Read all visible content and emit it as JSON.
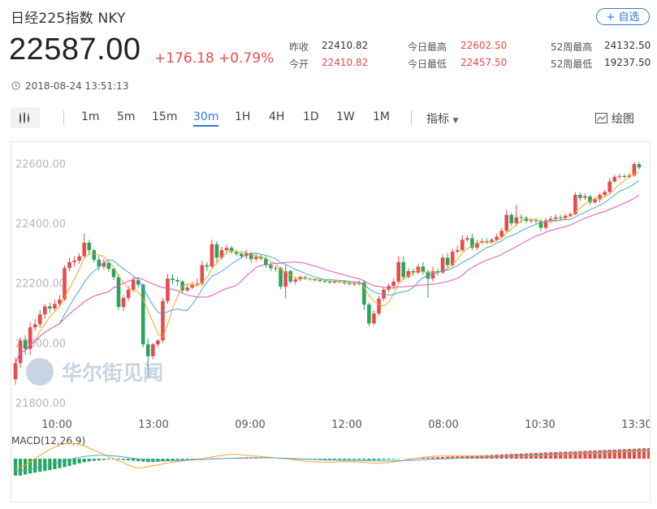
{
  "header": {
    "title": "日经225指数  NKY",
    "fav_label": "+ 自选",
    "price": "22587.00",
    "change": "+176.18",
    "change_pct": "+0.79%",
    "timestamp": "2018-08-24 13:51:13"
  },
  "stats": [
    {
      "label": "昨收",
      "value": "22410.82",
      "color": "normal"
    },
    {
      "label": "今开",
      "value": "22410.82",
      "color": "red"
    },
    {
      "label": "今日最高",
      "value": "22602.50",
      "color": "red"
    },
    {
      "label": "今日最低",
      "value": "22457.50",
      "color": "red"
    },
    {
      "label": "52周最高",
      "value": "24132.50",
      "color": "normal"
    },
    {
      "label": "52周最低",
      "value": "19237.50",
      "color": "normal"
    }
  ],
  "toolbar": {
    "periods": [
      "1m",
      "5m",
      "15m",
      "30m",
      "1H",
      "4H",
      "1D",
      "1W",
      "1M"
    ],
    "active_period": "30m",
    "indicator_label": "指标",
    "draw_label": "绘图"
  },
  "watermark": "华尔街见闻",
  "colors": {
    "up": "#e94b4b",
    "down": "#26a65b",
    "ma_orange": "#f5a623",
    "ma_blue": "#4aa3df",
    "ma_pink": "#e84fb5",
    "accent": "#2f7ad6"
  },
  "chart_data": {
    "type": "candlestick",
    "x_tick_labels": [
      "10:00",
      "13:00",
      "09:00",
      "12:00",
      "08:00",
      "10:30",
      "13:30"
    ],
    "y_tick_labels": [
      "22600.00",
      "22400.00",
      "22200.00",
      "22000.00",
      "21800.00"
    ],
    "ylim": [
      21770,
      22650
    ],
    "grid": false,
    "candles": [
      [
        21878,
        21932,
        21860,
        21950
      ],
      [
        21932,
        22008,
        21915,
        22018
      ],
      [
        22008,
        21980,
        21960,
        22025
      ],
      [
        21980,
        22052,
        21960,
        22070
      ],
      [
        22052,
        22062,
        22040,
        22080
      ],
      [
        22062,
        22095,
        22050,
        22110
      ],
      [
        22095,
        22122,
        22080,
        22130
      ],
      [
        22122,
        22115,
        22100,
        22135
      ],
      [
        22115,
        22130,
        22105,
        22145
      ],
      [
        22130,
        22145,
        22120,
        22160
      ],
      [
        22145,
        22250,
        22140,
        22260
      ],
      [
        22250,
        22270,
        22240,
        22285
      ],
      [
        22270,
        22275,
        22255,
        22290
      ],
      [
        22275,
        22290,
        22265,
        22300
      ],
      [
        22290,
        22335,
        22285,
        22365
      ],
      [
        22335,
        22310,
        22295,
        22345
      ],
      [
        22310,
        22278,
        22270,
        22315
      ],
      [
        22278,
        22255,
        22240,
        22290
      ],
      [
        22255,
        22268,
        22245,
        22282
      ],
      [
        22268,
        22248,
        22238,
        22275
      ],
      [
        22248,
        22220,
        22210,
        22250
      ],
      [
        22220,
        22120,
        22110,
        22230
      ],
      [
        22120,
        22150,
        22108,
        22160
      ],
      [
        22150,
        22178,
        22140,
        22190
      ],
      [
        22178,
        22210,
        22170,
        22220
      ],
      [
        22210,
        22195,
        22185,
        22218
      ],
      [
        22195,
        21995,
        21985,
        22198
      ],
      [
        21995,
        21955,
        21885,
        22015
      ],
      [
        21955,
        21995,
        21945,
        22000
      ],
      [
        21995,
        22008,
        21985,
        22012
      ],
      [
        22008,
        22140,
        22000,
        22150
      ],
      [
        22140,
        22215,
        22130,
        22230
      ],
      [
        22215,
        22210,
        22195,
        22230
      ],
      [
        22210,
        22205,
        22190,
        22218
      ],
      [
        22205,
        22175,
        22165,
        22210
      ],
      [
        22175,
        22185,
        22170,
        22195
      ],
      [
        22185,
        22195,
        22180,
        22205
      ],
      [
        22195,
        22198,
        22188,
        22215
      ],
      [
        22198,
        22260,
        22190,
        22275
      ],
      [
        22260,
        22255,
        22240,
        22270
      ],
      [
        22255,
        22330,
        22250,
        22345
      ],
      [
        22330,
        22285,
        22270,
        22340
      ],
      [
        22285,
        22310,
        22278,
        22322
      ],
      [
        22310,
        22318,
        22300,
        22328
      ],
      [
        22318,
        22305,
        22298,
        22325
      ],
      [
        22305,
        22298,
        22290,
        22312
      ],
      [
        22298,
        22290,
        22282,
        22305
      ],
      [
        22290,
        22300,
        22280,
        22312
      ],
      [
        22300,
        22280,
        22268,
        22305
      ],
      [
        22280,
        22288,
        22272,
        22298
      ],
      [
        22288,
        22282,
        22275,
        22295
      ],
      [
        22282,
        22260,
        22250,
        22290
      ],
      [
        22260,
        22250,
        22240,
        22270
      ],
      [
        22250,
        22250,
        22238,
        22258
      ],
      [
        22250,
        22188,
        22180,
        22255
      ],
      [
        22188,
        22240,
        22150,
        22260
      ],
      [
        22240,
        22205,
        22198,
        22245
      ],
      [
        22205,
        22212,
        22195,
        22220
      ],
      [
        22212,
        22220,
        22206,
        22225
      ],
      [
        22220,
        22215,
        22210,
        22225
      ],
      [
        22215,
        22212,
        22208,
        22218
      ],
      [
        22212,
        22210,
        22205,
        22216
      ],
      [
        22210,
        22207,
        22202,
        22214
      ],
      [
        22207,
        22205,
        22200,
        22212
      ],
      [
        22205,
        22202,
        22198,
        22210
      ],
      [
        22202,
        22205,
        22198,
        22212
      ],
      [
        22205,
        22205,
        22200,
        22210
      ],
      [
        22205,
        22200,
        22195,
        22210
      ],
      [
        22200,
        22198,
        22192,
        22205
      ],
      [
        22198,
        22198,
        22190,
        22205
      ],
      [
        22198,
        22202,
        22192,
        22208
      ],
      [
        22202,
        22128,
        22110,
        22210
      ],
      [
        22128,
        22065,
        22055,
        22135
      ],
      [
        22065,
        22098,
        22060,
        22108
      ],
      [
        22098,
        22148,
        22090,
        22158
      ],
      [
        22148,
        22178,
        22140,
        22188
      ],
      [
        22178,
        22190,
        22170,
        22198
      ],
      [
        22190,
        22205,
        22180,
        22215
      ],
      [
        22205,
        22270,
        22200,
        22290
      ],
      [
        22270,
        22220,
        22210,
        22290
      ],
      [
        22220,
        22240,
        22215,
        22250
      ],
      [
        22240,
        22235,
        22225,
        22248
      ],
      [
        22235,
        22255,
        22230,
        22265
      ],
      [
        22255,
        22238,
        22228,
        22270
      ],
      [
        22238,
        22215,
        22150,
        22245
      ],
      [
        22215,
        22240,
        22205,
        22255
      ],
      [
        22240,
        22235,
        22225,
        22248
      ],
      [
        22235,
        22285,
        22230,
        22295
      ],
      [
        22285,
        22260,
        22250,
        22300
      ],
      [
        22260,
        22305,
        22255,
        22315
      ],
      [
        22305,
        22310,
        22300,
        22325
      ],
      [
        22310,
        22345,
        22305,
        22360
      ],
      [
        22345,
        22350,
        22338,
        22360
      ],
      [
        22350,
        22318,
        22310,
        22365
      ],
      [
        22318,
        22335,
        22310,
        22345
      ],
      [
        22335,
        22340,
        22330,
        22350
      ],
      [
        22340,
        22338,
        22330,
        22350
      ],
      [
        22338,
        22345,
        22332,
        22352
      ],
      [
        22345,
        22355,
        22340,
        22365
      ],
      [
        22355,
        22375,
        22350,
        22385
      ],
      [
        22375,
        22428,
        22370,
        22445
      ],
      [
        22428,
        22400,
        22390,
        22435
      ],
      [
        22400,
        22420,
        22390,
        22462
      ],
      [
        22420,
        22418,
        22400,
        22430
      ],
      [
        22418,
        22408,
        22400,
        22425
      ],
      [
        22408,
        22410,
        22400,
        22418
      ],
      [
        22410,
        22408,
        22398,
        22418
      ],
      [
        22408,
        22385,
        22375,
        22415
      ],
      [
        22385,
        22410,
        22378,
        22418
      ],
      [
        22410,
        22415,
        22400,
        22425
      ],
      [
        22415,
        22420,
        22410,
        22430
      ],
      [
        22420,
        22418,
        22412,
        22428
      ],
      [
        22418,
        22425,
        22412,
        22432
      ],
      [
        22425,
        22430,
        22420,
        22438
      ],
      [
        22430,
        22495,
        22428,
        22505
      ],
      [
        22495,
        22485,
        22475,
        22502
      ],
      [
        22485,
        22490,
        22478,
        22500
      ],
      [
        22490,
        22470,
        22462,
        22495
      ],
      [
        22470,
        22480,
        22465,
        22488
      ],
      [
        22480,
        22495,
        22470,
        22502
      ],
      [
        22495,
        22505,
        22488,
        22512
      ],
      [
        22505,
        22540,
        22500,
        22552
      ],
      [
        22540,
        22555,
        22535,
        22562
      ],
      [
        22555,
        22558,
        22548,
        22565
      ],
      [
        22558,
        22555,
        22550,
        22565
      ],
      [
        22555,
        22560,
        22550,
        22568
      ],
      [
        22560,
        22598,
        22555,
        22605
      ],
      [
        22598,
        22587,
        22580,
        22605
      ]
    ],
    "ma_lines": [
      {
        "color_key": "ma_orange",
        "period": 5
      },
      {
        "color_key": "ma_blue",
        "period": 10
      },
      {
        "color_key": "ma_pink",
        "period": 20
      }
    ],
    "macd": {
      "label": "MACD(12,26,9)",
      "hist": [
        -8,
        -8,
        -7.5,
        -7,
        -6.6,
        -6.2,
        -5.8,
        -5.4,
        -5,
        -4.5,
        -4,
        -3.4,
        -2.8,
        -2.2,
        -1.7,
        -1.3,
        -1,
        -0.8,
        -0.6,
        -0.4,
        -0.3,
        -0.4,
        -0.6,
        -0.8,
        -1,
        -1.2,
        -1.4,
        -1.6,
        -1.6,
        -1.5,
        -1.3,
        -1,
        -0.8,
        -0.6,
        -0.5,
        -0.4,
        -0.3,
        -0.2,
        -0.1,
        0,
        0.1,
        0.15,
        0.2,
        0.25,
        0.3,
        0.3,
        0.3,
        0.3,
        0.25,
        0.2,
        0.15,
        0.1,
        0.05,
        0,
        -0.1,
        -0.2,
        -0.3,
        -0.35,
        -0.4,
        -0.45,
        -0.5,
        -0.5,
        -0.5,
        -0.5,
        -0.5,
        -0.5,
        -0.5,
        -0.5,
        -0.5,
        -0.5,
        -0.5,
        -0.6,
        -0.7,
        -0.7,
        -0.6,
        -0.5,
        -0.4,
        -0.3,
        -0.2,
        0,
        0.1,
        0.2,
        0.3,
        0.4,
        0.5,
        0.6,
        0.7,
        0.8,
        0.9,
        1,
        1.1,
        1.2,
        1.3,
        1.4,
        1.5,
        1.6,
        1.7,
        1.8,
        1.9,
        2,
        2.1,
        2.2,
        2.3,
        2.4,
        2.5,
        2.6,
        2.7,
        2.8,
        2.9,
        3,
        3.1,
        3.2,
        3.3,
        3.4,
        3.5,
        3.6,
        3.7,
        3.8,
        3.9,
        4,
        4.1,
        4.2,
        4.3,
        4.4,
        4.5,
        4.6,
        4.7,
        4.8,
        4.9,
        5
      ],
      "dif": [
        -5,
        -4,
        -3,
        -1.5,
        0,
        1.5,
        3,
        4.5,
        5.5,
        6.5,
        7,
        7.3,
        7.2,
        6.8,
        6,
        5,
        4,
        3,
        2,
        1,
        0,
        -1,
        -2,
        -3,
        -4,
        -4.5,
        -4.2,
        -3.8,
        -3.4,
        -3,
        -2.5,
        -2,
        -1.6,
        -1.3,
        -1.1,
        -0.8,
        -0.5,
        -0.2,
        0,
        0.4,
        0.8,
        1.2,
        1.5,
        1.8,
        2,
        2,
        1.8,
        1.6,
        1.4,
        1.2,
        1,
        0.8,
        0.6,
        0.4,
        0.2,
        0,
        -0.3,
        -0.6,
        -0.9,
        -1.2,
        -1.4,
        -1.5,
        -1.6,
        -1.6,
        -1.6,
        -1.6,
        -1.5,
        -1.5,
        -1.5,
        -1.5,
        -1.6,
        -1.8,
        -2,
        -2.2,
        -2.2,
        -2,
        -1.8,
        -1.5,
        -1.2,
        -0.8,
        -0.4,
        0,
        0.3,
        0.6,
        0.9,
        1.1,
        1.2,
        1.3,
        1.3,
        1.3,
        1.3,
        1.3,
        1.3,
        1.3,
        1.2,
        1.2,
        1.2,
        1.2,
        1.2,
        1.2,
        1.2,
        1.2,
        1.2,
        1.2,
        1.2,
        1.3,
        1.4,
        1.5,
        1.6,
        1.7,
        1.8,
        1.9,
        2,
        2.1,
        2.2,
        2.3,
        2.4,
        2.5,
        2.6,
        2.7,
        2.8,
        2.9,
        3,
        3.1,
        3.2,
        3.3,
        3.4,
        3.5,
        3.6,
        3.7,
        3.8,
        3.9,
        4,
        4.1,
        4.2,
        4.3
      ],
      "dea": [
        -6,
        -5.8,
        -5.5,
        -5,
        -4.5,
        -4,
        -3.4,
        -2.8,
        -2.2,
        -1.5,
        -0.9,
        -0.3,
        0.2,
        0.6,
        1,
        1.3,
        1.5,
        1.6,
        1.6,
        1.5,
        1.3,
        1.1,
        0.8,
        0.5,
        0.2,
        -0.1,
        -0.4,
        -0.6,
        -0.8,
        -0.9,
        -1,
        -1,
        -1,
        -0.9,
        -0.8,
        -0.7,
        -0.6,
        -0.5,
        -0.4,
        -0.3,
        -0.2,
        -0.1,
        0,
        0.1,
        0.2,
        0.3,
        0.4,
        0.5,
        0.5,
        0.5,
        0.5,
        0.5,
        0.5,
        0.4,
        0.3,
        0.2,
        0.1,
        0,
        -0.1,
        -0.2,
        -0.3,
        -0.4,
        -0.5,
        -0.6,
        -0.7,
        -0.7,
        -0.8,
        -0.8,
        -0.9,
        -0.9,
        -0.9,
        -1,
        -1,
        -1.1,
        -1.1,
        -1.1,
        -1.1,
        -1,
        -1,
        -0.9,
        -0.8,
        -0.7,
        -0.6,
        -0.5,
        -0.4,
        -0.3,
        -0.2,
        -0.1,
        0,
        0.1,
        0.2,
        0.3,
        0.4,
        0.5,
        0.6,
        0.7,
        0.8,
        0.9,
        1,
        1.1,
        1.2,
        1.3,
        1.4,
        1.5,
        1.6,
        1.7,
        1.8,
        1.9,
        2,
        2.1,
        2.2,
        2.3,
        2.4,
        2.5,
        2.6,
        2.7,
        2.8,
        2.9,
        3,
        3.1,
        3.2,
        3.3,
        3.4,
        3.5,
        3.6,
        3.7,
        3.8,
        3.9,
        4,
        4.1,
        4.2,
        4.3,
        4.4,
        4.5
      ]
    }
  }
}
